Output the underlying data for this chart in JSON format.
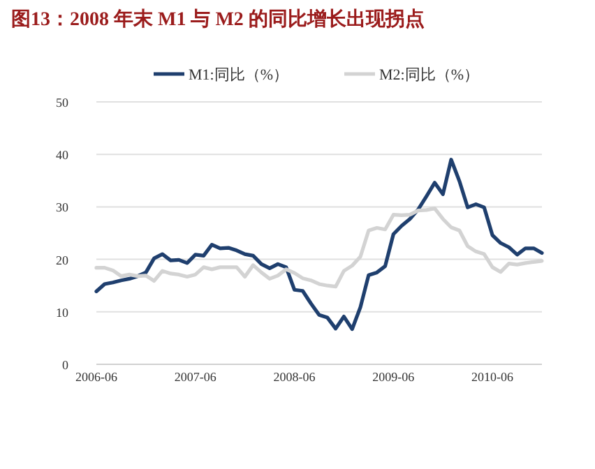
{
  "chart_data": {
    "type": "line",
    "title": "图13：2008 年末 M1 与 M2 的同比增长出现拐点",
    "x": [
      "2006-06",
      "2006-07",
      "2006-08",
      "2006-09",
      "2006-10",
      "2006-11",
      "2006-12",
      "2007-01",
      "2007-02",
      "2007-03",
      "2007-04",
      "2007-05",
      "2007-06",
      "2007-07",
      "2007-08",
      "2007-09",
      "2007-10",
      "2007-11",
      "2007-12",
      "2008-01",
      "2008-02",
      "2008-03",
      "2008-04",
      "2008-05",
      "2008-06",
      "2008-07",
      "2008-08",
      "2008-09",
      "2008-10",
      "2008-11",
      "2008-12",
      "2009-01",
      "2009-02",
      "2009-03",
      "2009-04",
      "2009-05",
      "2009-06",
      "2009-07",
      "2009-08",
      "2009-09",
      "2009-10",
      "2009-11",
      "2009-12",
      "2010-01",
      "2010-02",
      "2010-03",
      "2010-04",
      "2010-05",
      "2010-06",
      "2010-07",
      "2010-08",
      "2010-09",
      "2010-10",
      "2010-11",
      "2010-12"
    ],
    "series": [
      {
        "name": "M1:同比（%）",
        "color": "#1f3f6e",
        "values": [
          13.9,
          15.3,
          15.6,
          16.0,
          16.3,
          16.8,
          17.5,
          20.2,
          21.0,
          19.8,
          19.9,
          19.3,
          20.9,
          20.7,
          22.8,
          22.1,
          22.2,
          21.7,
          21.0,
          20.7,
          19.1,
          18.3,
          19.1,
          18.5,
          14.2,
          14.0,
          11.6,
          9.4,
          8.9,
          6.8,
          9.1,
          6.7,
          10.9,
          17.0,
          17.5,
          18.7,
          24.8,
          26.4,
          27.7,
          29.5,
          32.0,
          34.6,
          32.4,
          39.0,
          34.9,
          29.9,
          30.5,
          29.9,
          24.6,
          23.1,
          22.3,
          20.9,
          22.1,
          22.1,
          21.2
        ]
      },
      {
        "name": "M2:同比（%）",
        "color": "#d3d3d3",
        "values": [
          18.4,
          18.4,
          17.9,
          16.8,
          17.1,
          16.8,
          16.9,
          15.9,
          17.8,
          17.3,
          17.1,
          16.7,
          17.1,
          18.5,
          18.1,
          18.5,
          18.5,
          18.5,
          16.7,
          18.9,
          17.5,
          16.3,
          16.9,
          18.1,
          17.4,
          16.4,
          16.0,
          15.3,
          15.0,
          14.8,
          17.8,
          18.8,
          20.5,
          25.5,
          26.0,
          25.7,
          28.5,
          28.4,
          28.5,
          29.3,
          29.4,
          29.7,
          27.7,
          26.1,
          25.5,
          22.5,
          21.5,
          21.0,
          18.5,
          17.6,
          19.2,
          19.0,
          19.3,
          19.5,
          19.7
        ]
      }
    ],
    "xlim": [
      "2006-06",
      "2010-12"
    ],
    "xticks": [
      {
        "value": "2006-06",
        "label": "2006-06"
      },
      {
        "value": "2007-06",
        "label": "2007-06"
      },
      {
        "value": "2008-06",
        "label": "2008-06"
      },
      {
        "value": "2009-06",
        "label": "2009-06"
      },
      {
        "value": "2010-06",
        "label": "2010-06"
      }
    ],
    "ylim": [
      0,
      50
    ],
    "yticks": [
      0,
      10,
      20,
      30,
      40,
      50
    ],
    "grid": "y",
    "legend": "top"
  }
}
